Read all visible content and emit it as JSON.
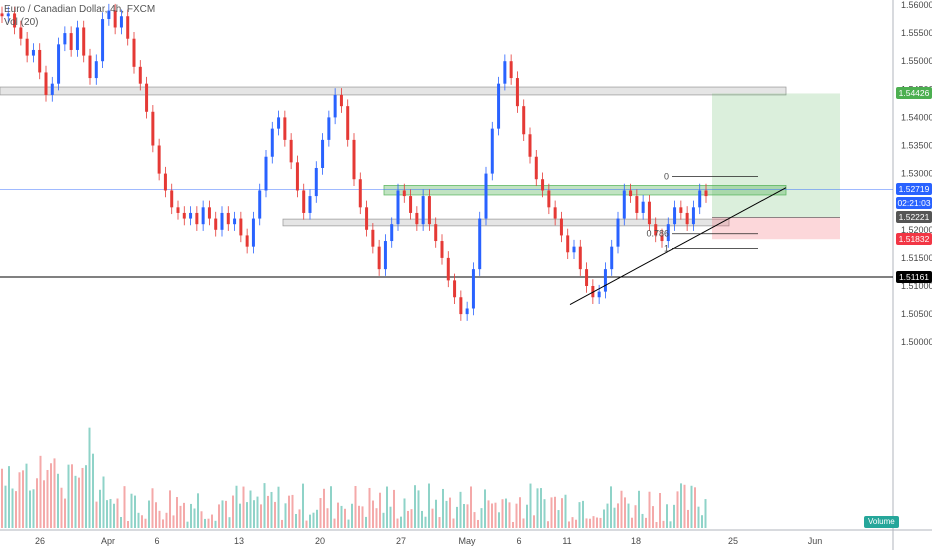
{
  "legend": {
    "title": "Euro / Canadian Dollar, 4h, FXCM",
    "volume": "Vol (20)"
  },
  "chart_data": {
    "type": "candlestick",
    "symbol": "EURCAD",
    "interval": "4h",
    "y_axis": {
      "min": 1.495,
      "max": 1.5625,
      "ticks": [
        "1.56000",
        "1.55500",
        "1.55000",
        "1.54500",
        "1.54000",
        "1.53500",
        "1.53000",
        "1.52500",
        "1.52000",
        "1.51500",
        "1.51000",
        "1.50500",
        "1.50000"
      ]
    },
    "x_axis": {
      "ticks": [
        "26",
        "Apr",
        "6",
        "13",
        "20",
        "27",
        "May",
        "6",
        "11",
        "18",
        "25",
        "Jun"
      ]
    },
    "close_path": [
      1.558,
      1.5585,
      1.556,
      1.554,
      1.551,
      1.552,
      1.548,
      1.544,
      1.546,
      1.553,
      1.555,
      1.552,
      1.556,
      1.551,
      1.547,
      1.55,
      1.5575,
      1.559,
      1.556,
      1.558,
      1.554,
      1.549,
      1.546,
      1.541,
      1.535,
      1.53,
      1.527,
      1.524,
      1.523,
      1.522,
      1.523,
      1.521,
      1.524,
      1.522,
      1.52,
      1.523,
      1.521,
      1.522,
      1.519,
      1.517,
      1.522,
      1.527,
      1.533,
      1.538,
      1.54,
      1.536,
      1.532,
      1.527,
      1.523,
      1.526,
      1.531,
      1.536,
      1.54,
      1.544,
      1.542,
      1.536,
      1.529,
      1.524,
      1.52,
      1.517,
      1.513,
      1.518,
      1.521,
      1.527,
      1.526,
      1.523,
      1.521,
      1.526,
      1.521,
      1.518,
      1.515,
      1.511,
      1.508,
      1.505,
      1.506,
      1.513,
      1.522,
      1.53,
      1.538,
      1.546,
      1.55,
      1.547,
      1.542,
      1.537,
      1.533,
      1.529,
      1.527,
      1.524,
      1.522,
      1.519,
      1.516,
      1.517,
      1.513,
      1.51,
      1.508,
      1.509,
      1.513,
      1.517,
      1.522,
      1.527,
      1.526,
      1.523,
      1.525,
      1.521,
      1.519,
      1.518,
      1.521,
      1.524,
      1.523,
      1.521,
      1.524,
      1.527,
      1.526
    ],
    "levels": [
      {
        "name": "resistance-zone",
        "from": 1.544,
        "to": 1.5454
      },
      {
        "name": "breakout-zone",
        "from": 1.5262,
        "to": 1.5279
      },
      {
        "name": "support-zone",
        "from": 1.5207,
        "to": 1.5219
      },
      {
        "name": "support-line",
        "at": 1.51161
      },
      {
        "name": "current-price-line",
        "at": 1.52719
      }
    ],
    "trade_setup": {
      "take_profit": 1.54426,
      "entry": 1.52221,
      "stop_loss": 1.51832
    },
    "fibonacci": [
      {
        "label": "0",
        "price": 1.5295
      },
      {
        "label": "0.786",
        "price": 1.5193
      },
      {
        "label": "1",
        "price": 1.5167
      }
    ],
    "trendline": {
      "from_price": 1.5067,
      "to_price": 1.5275
    },
    "price_labels": {
      "take_profit": "1.54426",
      "current": "1.52719",
      "countdown": "02:21:03",
      "entry": "1.52221",
      "stop_loss": "1.51832",
      "support": "1.51161"
    },
    "volume_label": "Volume",
    "colors": {
      "up": "#2962ff",
      "down": "#e53935",
      "vol_up": "#8fd3c8",
      "vol_down": "#f4a9a9",
      "tp": "#4caf50",
      "sl": "#f23645",
      "current": "#2962ff",
      "support": "#000000",
      "entry": "#555555"
    }
  }
}
